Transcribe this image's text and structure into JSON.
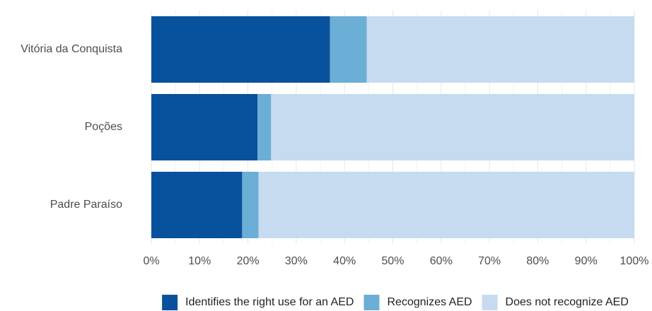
{
  "chart_data": {
    "type": "bar",
    "orientation": "horizontal",
    "stacked": true,
    "categories": [
      "Vitória da Conquista",
      "Poções",
      "Padre Paraíso"
    ],
    "series": [
      {
        "name": "Identifies the right use for an AED",
        "values": [
          37.0,
          22.0,
          18.8
        ],
        "color": "#08519c"
      },
      {
        "name": "Recognizes AED",
        "values": [
          7.6,
          2.8,
          3.4
        ],
        "color": "#6baed6"
      },
      {
        "name": "Does not recognize AED",
        "values": [
          55.4,
          75.2,
          77.8
        ],
        "color": "#c6dbef"
      }
    ],
    "xlim": [
      0,
      100
    ],
    "x_ticks": [
      "0%",
      "10%",
      "20%",
      "30%",
      "40%",
      "50%",
      "60%",
      "70%",
      "80%",
      "90%",
      "100%"
    ],
    "grid": true,
    "legend_position": "bottom"
  }
}
